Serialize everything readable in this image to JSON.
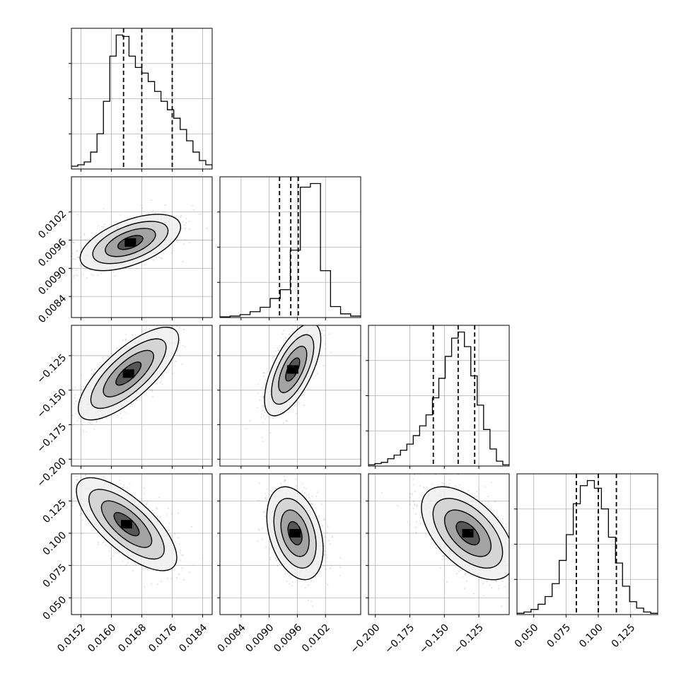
{
  "chart_data": {
    "type": "corner",
    "parameters": [
      {
        "id": "p0",
        "range": [
          0.01495,
          0.01865
        ],
        "ticks": [
          "0.0152",
          "0.0160",
          "0.0168",
          "0.0176",
          "0.0184"
        ],
        "hist": [
          2,
          3,
          5,
          12,
          25,
          48,
          80,
          95,
          94,
          80,
          72,
          68,
          62,
          55,
          48,
          42,
          36,
          28,
          20,
          12,
          6,
          3
        ],
        "quantiles": [
          0.01632,
          0.0168,
          0.0176
        ],
        "mean": 0.0168,
        "sd": 0.00055
      },
      {
        "id": "p1",
        "range": [
          0.00795,
          0.01095
        ],
        "ticks": [
          "0.0084",
          "0.0090",
          "0.0096",
          "0.0102"
        ],
        "hist": [
          1,
          2,
          4,
          8,
          14,
          26,
          38,
          92,
          178,
          183,
          64,
          15,
          5,
          2
        ],
        "quantiles": [
          0.00922,
          0.00946,
          0.00962
        ],
        "mean": 0.00945,
        "sd": 0.00025
      },
      {
        "id": "p2",
        "range": [
          -0.205,
          -0.103
        ],
        "ticks": [
          "-0.200",
          "-0.175",
          "-0.150",
          "-0.125"
        ],
        "hist": [
          1,
          2,
          3,
          6,
          9,
          13,
          18,
          25,
          33,
          42,
          56,
          72,
          90,
          105,
          110,
          98,
          74,
          50,
          30,
          14,
          4,
          1
        ],
        "quantiles": [
          -0.158,
          -0.14,
          -0.128
        ],
        "mean": -0.14,
        "sd": 0.014
      },
      {
        "id": "p3",
        "range": [
          0.037,
          0.146
        ],
        "ticks": [
          "0.050",
          "0.075",
          "0.100",
          "0.125"
        ],
        "hist": [
          1,
          2,
          4,
          8,
          14,
          24,
          42,
          62,
          86,
          100,
          104,
          98,
          82,
          60,
          40,
          22,
          10,
          5,
          2,
          1
        ],
        "quantiles": [
          0.083,
          0.1,
          0.114
        ],
        "mean": 0.1,
        "sd": 0.015
      }
    ],
    "pairs": [
      {
        "x": "p0",
        "y": "p1",
        "correlation": 0.55,
        "peak": [
          0.0165,
          0.00955
        ]
      },
      {
        "x": "p0",
        "y": "p2",
        "correlation": 0.75,
        "peak": [
          0.01645,
          -0.138
        ]
      },
      {
        "x": "p1",
        "y": "p2",
        "correlation": 0.65,
        "peak": [
          0.0095,
          -0.135
        ]
      },
      {
        "x": "p0",
        "y": "p3",
        "correlation": -0.72,
        "peak": [
          0.0164,
          0.107
        ]
      },
      {
        "x": "p1",
        "y": "p3",
        "correlation": -0.35,
        "peak": [
          0.00955,
          0.1
        ]
      },
      {
        "x": "p2",
        "y": "p3",
        "correlation": -0.55,
        "peak": [
          -0.133,
          0.1
        ]
      }
    ],
    "contour_levels_sigma": [
      0.5,
      1.0,
      1.5,
      2.0
    ],
    "colors": {
      "line": "#000000",
      "grid": "#b0b0b0",
      "scatter": "#8c8c8c"
    }
  }
}
